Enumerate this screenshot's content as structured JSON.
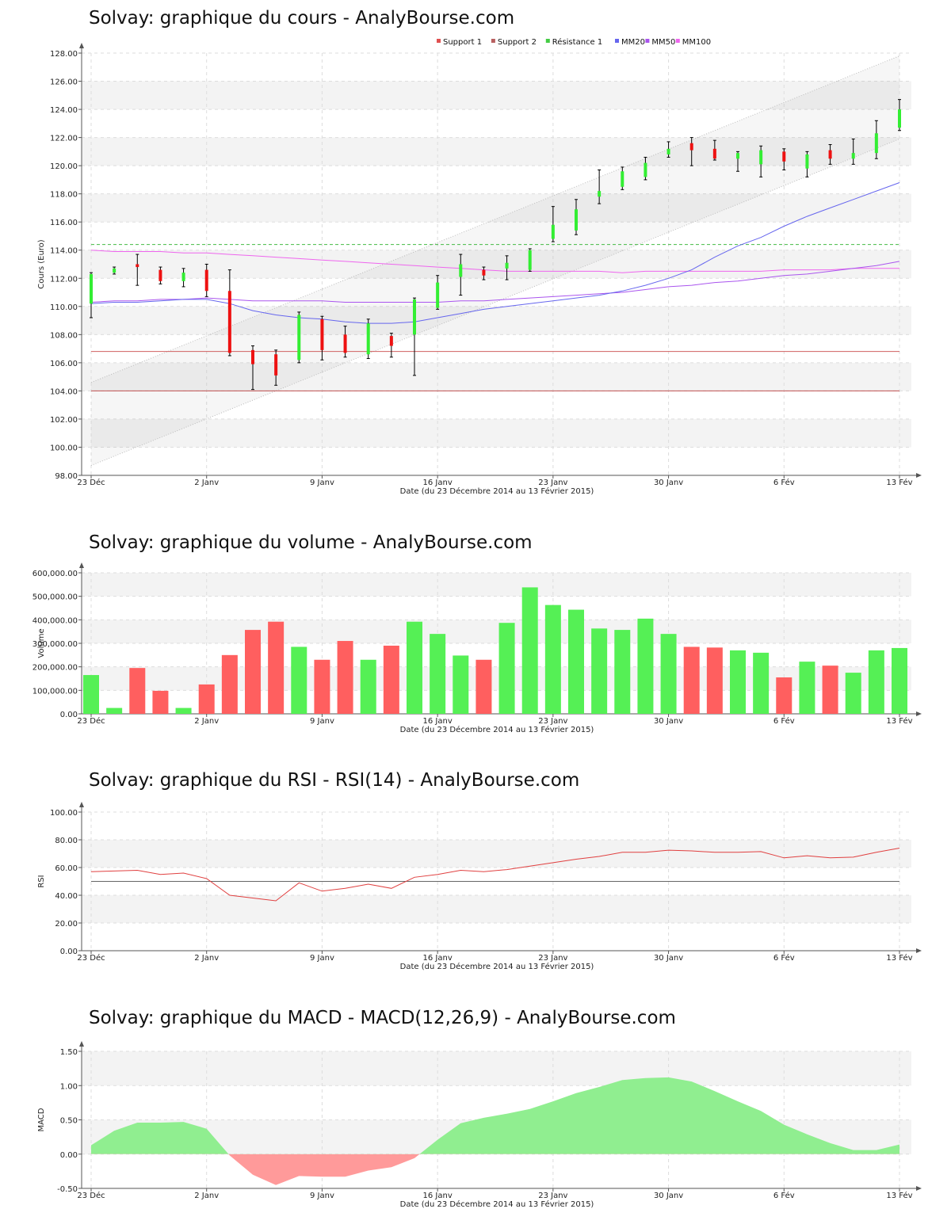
{
  "page": {
    "titles": {
      "price": "Solvay: graphique du cours - AnalyBourse.com",
      "volume": "Solvay: graphique du volume - AnalyBourse.com",
      "rsi": "Solvay: graphique du RSI - RSI(14) - AnalyBourse.com",
      "macd": "Solvay: graphique du MACD - MACD(12,26,9) - AnalyBourse.com"
    }
  },
  "chart_data": [
    {
      "id": "price",
      "type": "candlestick",
      "title": "Solvay: graphique du cours - AnalyBourse.com",
      "xlabel": "Date (du 23 Décembre 2014 au 13 Février 2015)",
      "ylabel": "Cours (Euro)",
      "ylim": [
        98,
        128
      ],
      "yticks": [
        "98.00",
        "100.00",
        "102.00",
        "104.00",
        "106.00",
        "108.00",
        "110.00",
        "112.00",
        "114.00",
        "116.00",
        "118.00",
        "120.00",
        "122.00",
        "124.00",
        "126.00",
        "128.00"
      ],
      "xticks": [
        {
          "i": 0,
          "label": "23 Déc"
        },
        {
          "i": 5,
          "label": "2 Janv"
        },
        {
          "i": 10,
          "label": "9 Janv"
        },
        {
          "i": 15,
          "label": "16 Janv"
        },
        {
          "i": 20,
          "label": "23 Janv"
        },
        {
          "i": 25,
          "label": "30 Janv"
        },
        {
          "i": 30,
          "label": "6 Fév"
        },
        {
          "i": 35,
          "label": "13 Fév"
        }
      ],
      "legend_position": "top-right",
      "legend": [
        {
          "name": "Support 1",
          "color": "#e05050"
        },
        {
          "name": "Support 2",
          "color": "#b86060"
        },
        {
          "name": "Résistance 1",
          "color": "#44cc44"
        },
        {
          "name": "MM20",
          "color": "#6666ee"
        },
        {
          "name": "MM50",
          "color": "#aa55ee"
        },
        {
          "name": "MM100",
          "color": "#ee66ee"
        }
      ],
      "candles": [
        {
          "o": 110.2,
          "h": 112.4,
          "l": 109.2,
          "c": 112.3
        },
        {
          "o": 112.4,
          "h": 112.8,
          "l": 112.3,
          "c": 112.7
        },
        {
          "o": 113.0,
          "h": 113.7,
          "l": 111.5,
          "c": 112.8
        },
        {
          "o": 112.6,
          "h": 112.8,
          "l": 111.6,
          "c": 111.8
        },
        {
          "o": 111.8,
          "h": 112.7,
          "l": 111.4,
          "c": 112.4
        },
        {
          "o": 112.6,
          "h": 113.0,
          "l": 110.7,
          "c": 111.1
        },
        {
          "o": 111.1,
          "h": 112.6,
          "l": 106.5,
          "c": 106.7
        },
        {
          "o": 106.9,
          "h": 107.2,
          "l": 104.1,
          "c": 105.9
        },
        {
          "o": 106.6,
          "h": 106.9,
          "l": 104.4,
          "c": 105.1
        },
        {
          "o": 106.2,
          "h": 109.6,
          "l": 106.0,
          "c": 109.4
        },
        {
          "o": 109.1,
          "h": 109.3,
          "l": 106.2,
          "c": 106.9
        },
        {
          "o": 108.0,
          "h": 108.6,
          "l": 106.4,
          "c": 106.7
        },
        {
          "o": 106.6,
          "h": 109.1,
          "l": 106.3,
          "c": 108.8
        },
        {
          "o": 107.9,
          "h": 108.1,
          "l": 106.4,
          "c": 107.2
        },
        {
          "o": 108.0,
          "h": 110.6,
          "l": 105.1,
          "c": 110.5
        },
        {
          "o": 109.9,
          "h": 112.2,
          "l": 109.8,
          "c": 111.7
        },
        {
          "o": 112.1,
          "h": 113.7,
          "l": 110.8,
          "c": 113.0
        },
        {
          "o": 112.6,
          "h": 112.8,
          "l": 111.9,
          "c": 112.2
        },
        {
          "o": 112.7,
          "h": 113.6,
          "l": 111.9,
          "c": 113.1
        },
        {
          "o": 112.6,
          "h": 114.1,
          "l": 112.5,
          "c": 114.0
        },
        {
          "o": 114.8,
          "h": 117.1,
          "l": 114.6,
          "c": 115.8
        },
        {
          "o": 115.4,
          "h": 117.6,
          "l": 115.1,
          "c": 116.9
        },
        {
          "o": 117.8,
          "h": 119.7,
          "l": 117.3,
          "c": 118.2
        },
        {
          "o": 118.5,
          "h": 119.9,
          "l": 118.3,
          "c": 119.6
        },
        {
          "o": 119.2,
          "h": 120.6,
          "l": 119.0,
          "c": 120.2
        },
        {
          "o": 120.8,
          "h": 121.7,
          "l": 120.6,
          "c": 121.2
        },
        {
          "o": 121.6,
          "h": 122.0,
          "l": 120.0,
          "c": 121.1
        },
        {
          "o": 121.2,
          "h": 121.8,
          "l": 120.4,
          "c": 120.5
        },
        {
          "o": 120.5,
          "h": 121.0,
          "l": 119.6,
          "c": 120.9
        },
        {
          "o": 120.1,
          "h": 121.4,
          "l": 119.2,
          "c": 121.1
        },
        {
          "o": 121.0,
          "h": 121.2,
          "l": 119.7,
          "c": 120.3
        },
        {
          "o": 119.8,
          "h": 121.0,
          "l": 119.2,
          "c": 120.8
        },
        {
          "o": 121.1,
          "h": 121.5,
          "l": 120.1,
          "c": 120.5
        },
        {
          "o": 120.5,
          "h": 121.9,
          "l": 120.1,
          "c": 120.9
        },
        {
          "o": 120.9,
          "h": 123.2,
          "l": 120.5,
          "c": 122.3
        },
        {
          "o": 122.7,
          "h": 124.7,
          "l": 122.5,
          "c": 124.0
        }
      ],
      "support1": 106.8,
      "support2": 104.0,
      "resistance1": 114.4,
      "channel_upper": [
        104.6,
        127.8
      ],
      "channel_lower": [
        98.7,
        121.9
      ],
      "mm20": [
        110.2,
        110.3,
        110.3,
        110.4,
        110.5,
        110.5,
        110.2,
        109.7,
        109.4,
        109.2,
        109.1,
        108.9,
        108.8,
        108.8,
        108.9,
        109.2,
        109.5,
        109.8,
        110.0,
        110.2,
        110.4,
        110.6,
        110.8,
        111.1,
        111.5,
        112.0,
        112.6,
        113.5,
        114.3,
        114.9,
        115.7,
        116.4,
        117.0,
        117.6,
        118.2,
        118.8
      ],
      "mm50": [
        110.3,
        110.4,
        110.4,
        110.5,
        110.5,
        110.6,
        110.5,
        110.4,
        110.4,
        110.4,
        110.4,
        110.3,
        110.3,
        110.3,
        110.3,
        110.3,
        110.4,
        110.4,
        110.5,
        110.6,
        110.7,
        110.8,
        110.9,
        111.0,
        111.2,
        111.4,
        111.5,
        111.7,
        111.8,
        112.0,
        112.2,
        112.3,
        112.5,
        112.7,
        112.9,
        113.2
      ],
      "mm100": [
        114.0,
        113.9,
        113.9,
        113.9,
        113.8,
        113.8,
        113.7,
        113.6,
        113.5,
        113.4,
        113.3,
        113.2,
        113.1,
        113.0,
        112.9,
        112.8,
        112.7,
        112.6,
        112.5,
        112.5,
        112.5,
        112.5,
        112.5,
        112.4,
        112.5,
        112.5,
        112.5,
        112.5,
        112.5,
        112.5,
        112.6,
        112.6,
        112.6,
        112.7,
        112.7,
        112.7
      ]
    },
    {
      "id": "volume",
      "type": "bar",
      "title": "Solvay: graphique du volume - AnalyBourse.com",
      "xlabel": "Date (du 23 Décembre 2014 au 13 Février 2015)",
      "ylabel": "Volume",
      "ylim": [
        0,
        600000
      ],
      "yticks": [
        "0.00",
        "100,000.00",
        "200,000.00",
        "300,000.00",
        "400,000.00",
        "500,000.00",
        "600,000.00"
      ],
      "xticks": [
        {
          "i": 0,
          "label": "23 Déc"
        },
        {
          "i": 5,
          "label": "2 Janv"
        },
        {
          "i": 10,
          "label": "9 Janv"
        },
        {
          "i": 15,
          "label": "16 Janv"
        },
        {
          "i": 20,
          "label": "23 Janv"
        },
        {
          "i": 25,
          "label": "30 Janv"
        },
        {
          "i": 30,
          "label": "6 Fév"
        },
        {
          "i": 35,
          "label": "13 Fév"
        }
      ],
      "values": [
        165000,
        25000,
        195000,
        98000,
        25000,
        125000,
        250000,
        357000,
        392000,
        285000,
        230000,
        310000,
        230000,
        290000,
        392000,
        340000,
        248000,
        230000,
        387000,
        538000,
        463000,
        443000,
        363000,
        357000,
        405000,
        340000,
        285000,
        282000,
        270000,
        260000,
        155000,
        222000,
        205000,
        175000,
        270000,
        280000
      ],
      "up": [
        true,
        true,
        false,
        false,
        true,
        false,
        false,
        false,
        false,
        true,
        false,
        false,
        true,
        false,
        true,
        true,
        true,
        false,
        true,
        true,
        true,
        true,
        true,
        true,
        true,
        true,
        false,
        false,
        true,
        true,
        false,
        true,
        false,
        true,
        true,
        true
      ]
    },
    {
      "id": "rsi",
      "type": "line",
      "title": "Solvay: graphique du RSI - RSI(14) - AnalyBourse.com",
      "xlabel": "Date (du 23 Décembre 2014 au 13 Février 2015)",
      "ylabel": "RSI",
      "ylim": [
        0,
        100
      ],
      "yticks": [
        "0.00",
        "20.00",
        "40.00",
        "60.00",
        "80.00",
        "100.00"
      ],
      "xticks": [
        {
          "i": 0,
          "label": "23 Déc"
        },
        {
          "i": 5,
          "label": "2 Janv"
        },
        {
          "i": 10,
          "label": "9 Janv"
        },
        {
          "i": 15,
          "label": "16 Janv"
        },
        {
          "i": 20,
          "label": "23 Janv"
        },
        {
          "i": 25,
          "label": "30 Janv"
        },
        {
          "i": 30,
          "label": "6 Fév"
        },
        {
          "i": 35,
          "label": "13 Fév"
        }
      ],
      "values": [
        57,
        57.5,
        58,
        55,
        56,
        52,
        40,
        38,
        36,
        49,
        43,
        45,
        48,
        45,
        53,
        55,
        58,
        57,
        58.5,
        61,
        63.5,
        66,
        68,
        71,
        71,
        72.5,
        72,
        71,
        71,
        71.5,
        67,
        68.5,
        67,
        67.5,
        71,
        74
      ],
      "reference_line": 50
    },
    {
      "id": "macd",
      "type": "area",
      "title": "Solvay: graphique du MACD - MACD(12,26,9) - AnalyBourse.com",
      "xlabel": "Date (du 23 Décembre 2014 au 13 Février 2015)",
      "ylabel": "MACD",
      "ylim": [
        -0.5,
        1.5
      ],
      "yticks": [
        "-0.50",
        "0.00",
        "0.50",
        "1.00",
        "1.50"
      ],
      "xticks": [
        {
          "i": 0,
          "label": "23 Déc"
        },
        {
          "i": 5,
          "label": "2 Janv"
        },
        {
          "i": 10,
          "label": "9 Janv"
        },
        {
          "i": 15,
          "label": "16 Janv"
        },
        {
          "i": 20,
          "label": "23 Janv"
        },
        {
          "i": 25,
          "label": "30 Janv"
        },
        {
          "i": 30,
          "label": "6 Fév"
        },
        {
          "i": 35,
          "label": "13 Fév"
        }
      ],
      "values": [
        0.13,
        0.34,
        0.46,
        0.46,
        0.47,
        0.37,
        -0.02,
        -0.3,
        -0.45,
        -0.32,
        -0.33,
        -0.33,
        -0.24,
        -0.19,
        -0.06,
        0.21,
        0.45,
        0.53,
        0.59,
        0.66,
        0.77,
        0.89,
        0.98,
        1.08,
        1.11,
        1.12,
        1.06,
        0.92,
        0.77,
        0.63,
        0.43,
        0.29,
        0.16,
        0.06,
        0.06,
        0.14
      ],
      "colors": {
        "positive": "#90ee90",
        "negative": "#ff9a9a"
      }
    }
  ]
}
